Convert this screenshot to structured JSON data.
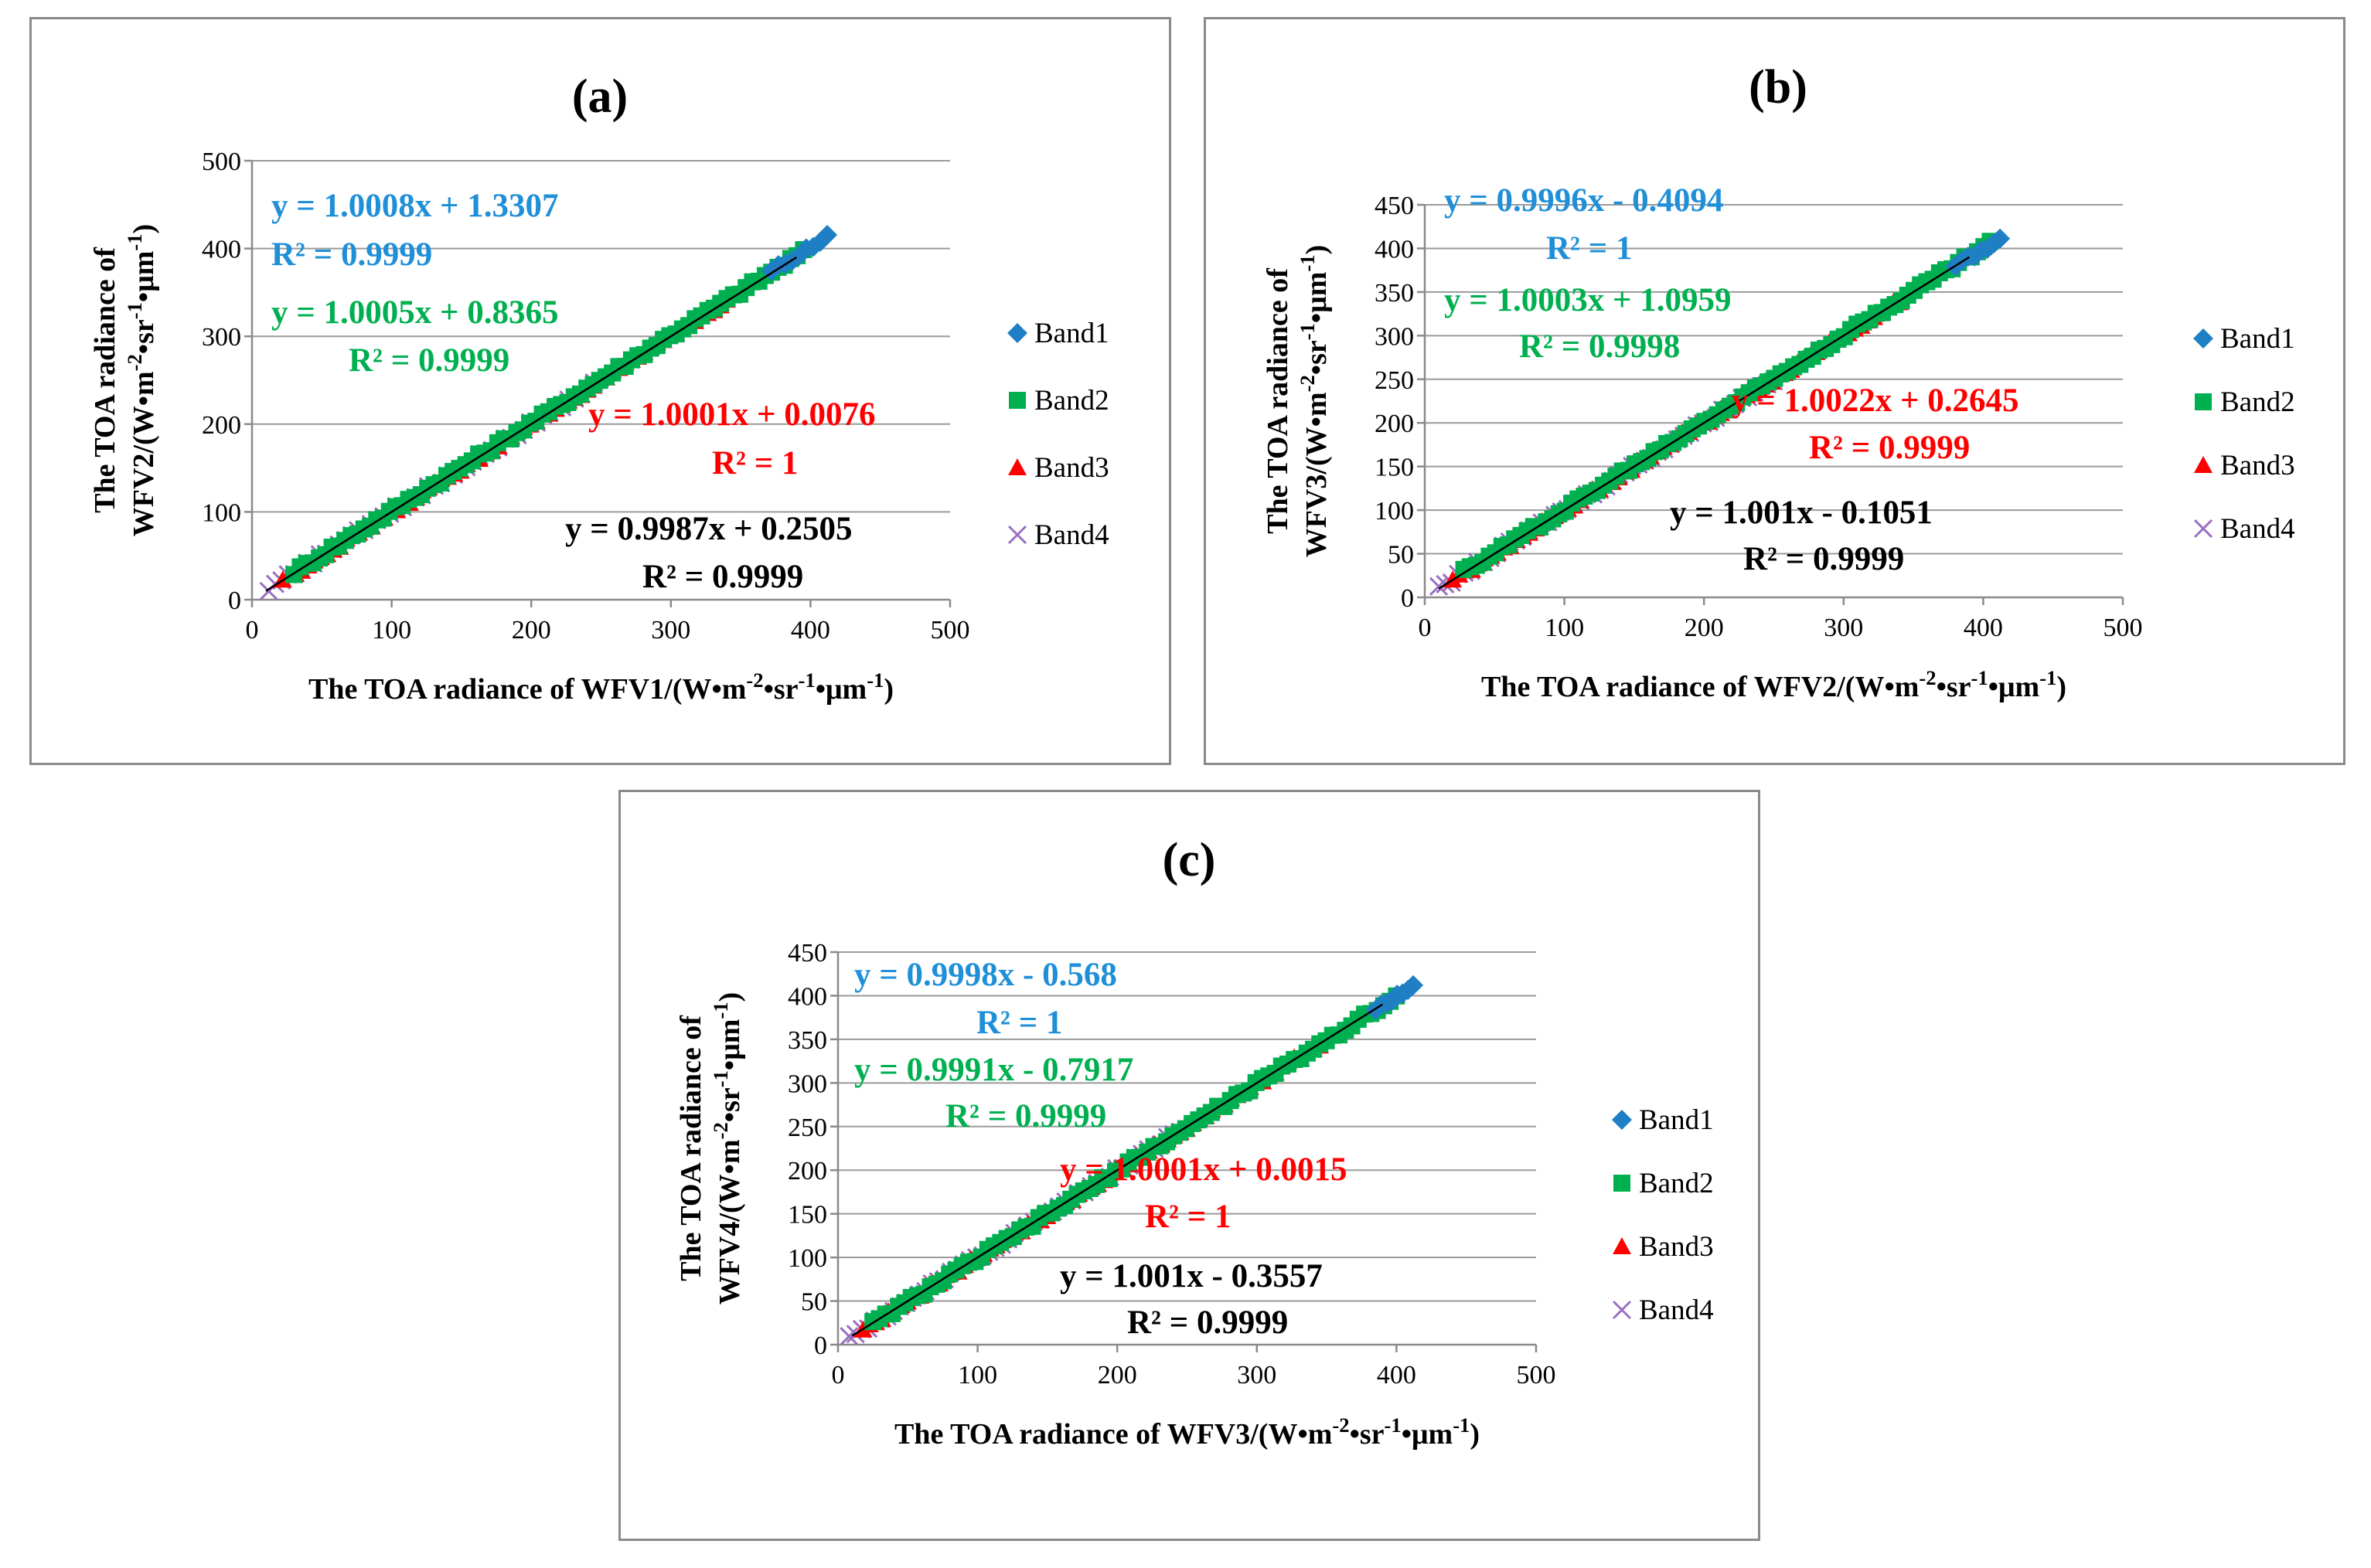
{
  "chart_data": [
    {
      "type": "scatter",
      "panel_label": "(a)",
      "xlabel_main": "The TOA radiance of WFV1/(W",
      "ylabel_line1": "The TOA radiance of",
      "ylabel_line2_main": "WFV2/(W",
      "xlim": [
        0,
        500
      ],
      "ylim": [
        0,
        500
      ],
      "xticks": [
        0,
        100,
        200,
        300,
        400,
        500
      ],
      "yticks": [
        0,
        100,
        200,
        300,
        400,
        500
      ],
      "series": [
        {
          "name": "Band1",
          "color": "#1f7fc4",
          "marker": "diamond",
          "x_range": [
            372,
            412
          ],
          "slope": 1.0008,
          "intercept": 1.3307,
          "equation": "y = 1.0008x + 1.3307",
          "r2": "R² = 0.9999"
        },
        {
          "name": "Band2",
          "color": "#00b050",
          "marker": "square",
          "x_range": [
            30,
            395
          ],
          "slope": 1.0005,
          "intercept": 0.8365,
          "equation": "y = 1.0005x + 0.8365",
          "r2": "R² = 0.9999"
        },
        {
          "name": "Band3",
          "color": "#ff0000",
          "marker": "triangle",
          "x_range": [
            22,
            340
          ],
          "slope": 1.0001,
          "intercept": 0.0076,
          "equation": "y = 1.0001x + 0.0076",
          "r2": "R² = 1"
        },
        {
          "name": "Band4",
          "color": "#9b6fc0",
          "marker": "x",
          "x_range": [
            12,
            245
          ],
          "slope": 0.9987,
          "intercept": 0.2505,
          "equation": "y = 0.9987x + 0.2505",
          "r2": "R² = 0.9999"
        }
      ],
      "legend": [
        "Band1",
        "Band2",
        "Band3",
        "Band4"
      ]
    },
    {
      "type": "scatter",
      "panel_label": "(b)",
      "xlabel_main": "The TOA radiance of WFV2/(W",
      "ylabel_line1": "The TOA radiance of",
      "ylabel_line2_main": "WFV3/(W",
      "xlim": [
        0,
        500
      ],
      "ylim": [
        0,
        450
      ],
      "xticks": [
        0,
        100,
        200,
        300,
        400,
        500
      ],
      "yticks": [
        0,
        50,
        100,
        150,
        200,
        250,
        300,
        350,
        400,
        450
      ],
      "series": [
        {
          "name": "Band1",
          "color": "#1f7fc4",
          "marker": "diamond",
          "x_range": [
            380,
            412
          ],
          "slope": 0.9996,
          "intercept": -0.4094,
          "equation": "y = 0.9996x - 0.4094",
          "r2": "R² = 1"
        },
        {
          "name": "Band2",
          "color": "#00b050",
          "marker": "square",
          "x_range": [
            28,
            405
          ],
          "slope": 1.0003,
          "intercept": 1.0959,
          "equation": "y = 1.0003x + 1.0959",
          "r2": "R² = 0.9998"
        },
        {
          "name": "Band3",
          "color": "#ff0000",
          "marker": "triangle",
          "x_range": [
            20,
            340
          ],
          "slope": 1.0022,
          "intercept": 0.2645,
          "equation": "y = 1.0022x + 0.2645",
          "r2": "R² = 0.9999"
        },
        {
          "name": "Band4",
          "color": "#9b6fc0",
          "marker": "x",
          "x_range": [
            10,
            250
          ],
          "slope": 1.001,
          "intercept": -0.1051,
          "equation": "y = 1.001x - 0.1051",
          "r2": "R² = 0.9999"
        }
      ],
      "legend": [
        "Band1",
        "Band2",
        "Band3",
        "Band4"
      ]
    },
    {
      "type": "scatter",
      "panel_label": "(c)",
      "xlabel_main": "The TOA radiance of WFV3/(W",
      "ylabel_line1": "The TOA radiance of",
      "ylabel_line2_main": "WFV4/(W",
      "xlim": [
        0,
        500
      ],
      "ylim": [
        0,
        450
      ],
      "xticks": [
        0,
        100,
        200,
        300,
        400,
        500
      ],
      "yticks": [
        0,
        50,
        100,
        150,
        200,
        250,
        300,
        350,
        400,
        450
      ],
      "series": [
        {
          "name": "Band1",
          "color": "#1f7fc4",
          "marker": "diamond",
          "x_range": [
            385,
            412
          ],
          "slope": 0.9998,
          "intercept": -0.568,
          "equation": "y = 0.9998x - 0.568",
          "r2": "R² = 1"
        },
        {
          "name": "Band2",
          "color": "#00b050",
          "marker": "square",
          "x_range": [
            25,
            400
          ],
          "slope": 0.9991,
          "intercept": -0.7917,
          "equation": "y = 0.9991x - 0.7917",
          "r2": "R² = 0.9999"
        },
        {
          "name": "Band3",
          "color": "#ff0000",
          "marker": "triangle",
          "x_range": [
            18,
            345
          ],
          "slope": 1.0001,
          "intercept": 0.0015,
          "equation": "y = 1.0001x + 0.0015",
          "r2": "R² = 1"
        },
        {
          "name": "Band4",
          "color": "#9b6fc0",
          "marker": "x",
          "x_range": [
            8,
            245
          ],
          "slope": 1.001,
          "intercept": -0.3557,
          "equation": "y = 1.001x - 0.3557",
          "r2": "R² = 0.9999"
        }
      ],
      "legend": [
        "Band1",
        "Band2",
        "Band3",
        "Band4"
      ]
    }
  ]
}
